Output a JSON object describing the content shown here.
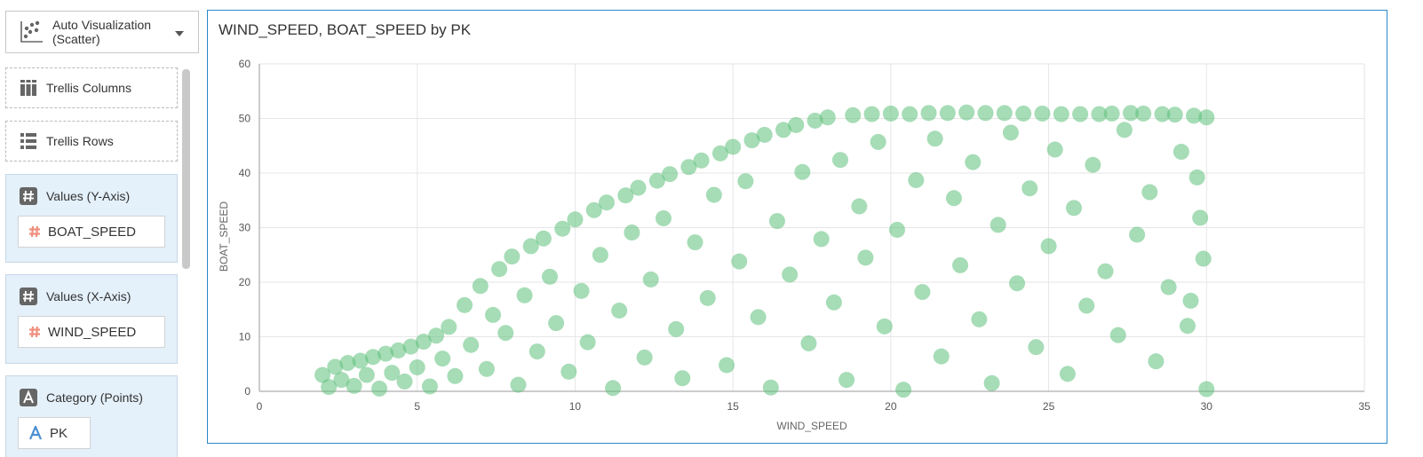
{
  "viz_picker": {
    "label": "Auto Visualization (Scatter)",
    "icon": "scatter-chart-icon"
  },
  "drop_zones": [
    {
      "label": "Trellis Columns",
      "icon": "trellis-columns-icon"
    },
    {
      "label": "Trellis Rows",
      "icon": "trellis-rows-icon"
    }
  ],
  "panels": {
    "y_axis": {
      "title": "Values (Y-Axis)",
      "icon": "hash-icon",
      "field": "BOAT_SPEED",
      "field_icon": "measure-hash-icon"
    },
    "x_axis": {
      "title": "Values (X-Axis)",
      "icon": "hash-icon",
      "field": "WIND_SPEED",
      "field_icon": "measure-hash-icon"
    },
    "category": {
      "title": "Category (Points)",
      "icon": "attribute-a-icon",
      "field": "PK",
      "field_icon": "attribute-a-icon"
    }
  },
  "colors": {
    "accent_border": "#2a88c8",
    "point": "#5cbf7a",
    "panel_bg": "#e4f0fa",
    "measure_icon": "#ef8f7f"
  },
  "chart_data": {
    "type": "scatter",
    "title": "WIND_SPEED, BOAT_SPEED by PK",
    "xlabel": "WIND_SPEED",
    "ylabel": "BOAT_SPEED",
    "xlim": [
      0,
      35
    ],
    "ylim": [
      0,
      60
    ],
    "xticks": [
      0,
      5,
      10,
      15,
      20,
      25,
      30,
      35
    ],
    "yticks": [
      0,
      10,
      20,
      30,
      40,
      50,
      60
    ],
    "grid": true,
    "series": [
      {
        "color": "#5cbf7a",
        "points": [
          [
            2.0,
            3.0
          ],
          [
            2.2,
            0.8
          ],
          [
            2.4,
            4.5
          ],
          [
            2.6,
            2.1
          ],
          [
            2.8,
            5.2
          ],
          [
            3.0,
            1.0
          ],
          [
            3.2,
            5.6
          ],
          [
            3.4,
            3.0
          ],
          [
            3.6,
            6.3
          ],
          [
            3.8,
            0.5
          ],
          [
            4.0,
            6.9
          ],
          [
            4.2,
            3.4
          ],
          [
            4.4,
            7.5
          ],
          [
            4.6,
            1.8
          ],
          [
            4.8,
            8.2
          ],
          [
            5.0,
            4.4
          ],
          [
            5.2,
            9.1
          ],
          [
            5.4,
            0.9
          ],
          [
            5.6,
            10.2
          ],
          [
            5.8,
            6.0
          ],
          [
            6.0,
            11.8
          ],
          [
            6.2,
            2.8
          ],
          [
            6.5,
            15.8
          ],
          [
            6.7,
            8.5
          ],
          [
            7.0,
            19.3
          ],
          [
            7.2,
            4.1
          ],
          [
            7.4,
            14.0
          ],
          [
            7.6,
            22.4
          ],
          [
            7.8,
            10.7
          ],
          [
            8.0,
            24.7
          ],
          [
            8.2,
            1.2
          ],
          [
            8.4,
            17.6
          ],
          [
            8.6,
            26.6
          ],
          [
            8.8,
            7.3
          ],
          [
            9.0,
            28.0
          ],
          [
            9.2,
            21.0
          ],
          [
            9.4,
            12.5
          ],
          [
            9.6,
            29.8
          ],
          [
            9.8,
            3.6
          ],
          [
            10.0,
            31.5
          ],
          [
            10.2,
            18.4
          ],
          [
            10.4,
            9.0
          ],
          [
            10.6,
            33.2
          ],
          [
            10.8,
            25.0
          ],
          [
            11.0,
            34.6
          ],
          [
            11.2,
            0.6
          ],
          [
            11.4,
            14.8
          ],
          [
            11.6,
            35.9
          ],
          [
            11.8,
            29.1
          ],
          [
            12.0,
            37.3
          ],
          [
            12.2,
            6.2
          ],
          [
            12.4,
            20.5
          ],
          [
            12.6,
            38.6
          ],
          [
            12.8,
            31.7
          ],
          [
            13.0,
            39.8
          ],
          [
            13.2,
            11.4
          ],
          [
            13.4,
            2.4
          ],
          [
            13.6,
            41.1
          ],
          [
            13.8,
            27.3
          ],
          [
            14.0,
            42.3
          ],
          [
            14.2,
            17.1
          ],
          [
            14.4,
            36.0
          ],
          [
            14.6,
            43.6
          ],
          [
            14.8,
            4.8
          ],
          [
            15.0,
            44.8
          ],
          [
            15.2,
            23.8
          ],
          [
            15.4,
            38.5
          ],
          [
            15.6,
            46.0
          ],
          [
            15.8,
            13.6
          ],
          [
            16.0,
            47.0
          ],
          [
            16.2,
            0.7
          ],
          [
            16.4,
            31.2
          ],
          [
            16.6,
            47.9
          ],
          [
            16.8,
            21.4
          ],
          [
            17.0,
            48.8
          ],
          [
            17.2,
            40.2
          ],
          [
            17.4,
            8.8
          ],
          [
            17.6,
            49.6
          ],
          [
            17.8,
            27.9
          ],
          [
            18.0,
            50.2
          ],
          [
            18.2,
            16.3
          ],
          [
            18.4,
            42.4
          ],
          [
            18.6,
            2.1
          ],
          [
            18.8,
            50.6
          ],
          [
            19.0,
            33.9
          ],
          [
            19.2,
            24.5
          ],
          [
            19.4,
            50.8
          ],
          [
            19.6,
            45.7
          ],
          [
            19.8,
            11.9
          ],
          [
            20.0,
            50.9
          ],
          [
            20.2,
            29.6
          ],
          [
            20.4,
            0.3
          ],
          [
            20.6,
            50.8
          ],
          [
            20.8,
            38.7
          ],
          [
            21.0,
            18.2
          ],
          [
            21.2,
            51.0
          ],
          [
            21.4,
            46.3
          ],
          [
            21.6,
            6.4
          ],
          [
            21.8,
            51.0
          ],
          [
            22.0,
            35.4
          ],
          [
            22.2,
            23.1
          ],
          [
            22.4,
            51.1
          ],
          [
            22.6,
            42.0
          ],
          [
            22.8,
            13.2
          ],
          [
            23.0,
            51.0
          ],
          [
            23.2,
            1.5
          ],
          [
            23.4,
            30.5
          ],
          [
            23.6,
            51.0
          ],
          [
            23.8,
            47.4
          ],
          [
            24.0,
            19.8
          ],
          [
            24.2,
            50.9
          ],
          [
            24.4,
            37.2
          ],
          [
            24.6,
            8.1
          ],
          [
            24.8,
            50.9
          ],
          [
            25.0,
            26.6
          ],
          [
            25.2,
            44.3
          ],
          [
            25.4,
            50.8
          ],
          [
            25.6,
            3.2
          ],
          [
            25.8,
            33.6
          ],
          [
            26.0,
            50.8
          ],
          [
            26.2,
            15.7
          ],
          [
            26.4,
            41.5
          ],
          [
            26.6,
            50.8
          ],
          [
            26.8,
            22.0
          ],
          [
            27.0,
            50.9
          ],
          [
            27.2,
            10.3
          ],
          [
            27.4,
            47.9
          ],
          [
            27.6,
            51.0
          ],
          [
            27.8,
            28.7
          ],
          [
            28.0,
            50.9
          ],
          [
            28.2,
            36.5
          ],
          [
            28.4,
            5.5
          ],
          [
            28.6,
            50.8
          ],
          [
            28.8,
            19.1
          ],
          [
            29.0,
            50.7
          ],
          [
            29.2,
            43.9
          ],
          [
            29.4,
            12.0
          ],
          [
            29.6,
            50.5
          ],
          [
            29.8,
            31.8
          ],
          [
            30.0,
            50.2
          ],
          [
            30.0,
            0.4
          ],
          [
            29.9,
            24.3
          ],
          [
            29.7,
            39.2
          ],
          [
            29.5,
            16.6
          ]
        ]
      }
    ]
  }
}
